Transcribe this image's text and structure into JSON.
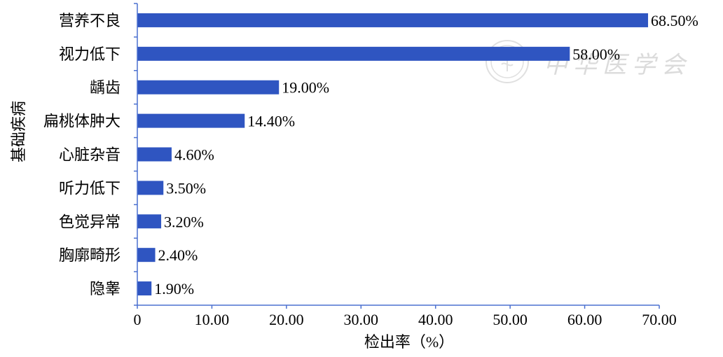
{
  "chart_data": {
    "type": "bar",
    "orientation": "horizontal",
    "categories": [
      "营养不良",
      "视力低下",
      "龋齿",
      "扁桃体肿大",
      "心脏杂音",
      "听力低下",
      "色觉异常",
      "胸廓畸形",
      "隐睾"
    ],
    "values": [
      68.5,
      58.0,
      19.0,
      14.4,
      4.6,
      3.5,
      3.2,
      2.4,
      1.9
    ],
    "data_labels": [
      "68.50%",
      "58.00%",
      "19.00%",
      "14.40%",
      "4.60%",
      "3.50%",
      "3.20%",
      "2.40%",
      "1.90%"
    ],
    "xlabel": "检出率（%）",
    "ylabel": "基础疾病",
    "xlim": [
      0,
      70
    ],
    "xticks": [
      0,
      10,
      20,
      30,
      40,
      50,
      60,
      70
    ],
    "xtick_labels": [
      "0",
      "10.00",
      "20.00",
      "30.00",
      "40.00",
      "50.00",
      "60.00",
      "70.00"
    ],
    "grid": false,
    "bar_color": "#2f55c1",
    "axis_color": "#4b70d0"
  },
  "watermark": {
    "text": "中华医学会",
    "emblem": "chinese-medical-association-seal"
  }
}
